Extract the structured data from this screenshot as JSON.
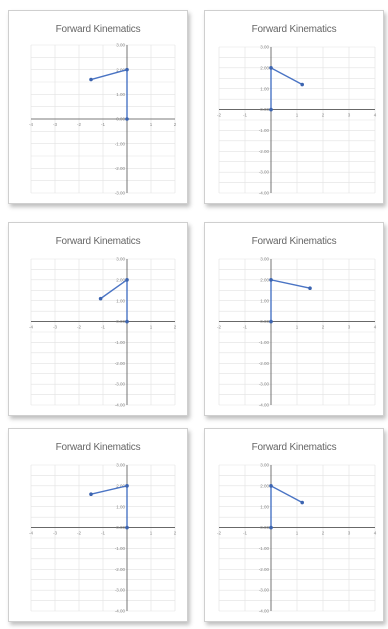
{
  "chart_data": [
    {
      "type": "line",
      "title": "Forward Kinematics",
      "xlim": [
        -4,
        2
      ],
      "ylim": [
        -3,
        3
      ],
      "yticks": [
        -3,
        -2,
        -1,
        0,
        1,
        2,
        3
      ],
      "ytick_labels": [
        "-3.00",
        "-2.00",
        "-1.00",
        "0.00",
        "1.00",
        "2.00",
        "3.00"
      ],
      "xticks": [
        -4,
        -3,
        -2,
        -1,
        1,
        2
      ],
      "xtick_labels": [
        "-4",
        "-3",
        "-2",
        "-1",
        "1",
        "2"
      ],
      "grid": true,
      "series": [
        {
          "x": [
            0,
            0,
            -1.5
          ],
          "y": [
            0,
            2,
            1.6
          ]
        }
      ]
    },
    {
      "type": "line",
      "title": "Forward Kinematics",
      "xlim": [
        -2,
        4
      ],
      "ylim": [
        -4,
        3
      ],
      "yticks": [
        -4,
        -3,
        -2,
        -1,
        0,
        1,
        2,
        3
      ],
      "ytick_labels": [
        "-4.00",
        "-3.00",
        "-2.00",
        "-1.00",
        "0.00",
        "1.00",
        "2.00",
        "3.00"
      ],
      "xticks": [
        -2,
        -1,
        1,
        2,
        3,
        4
      ],
      "xtick_labels": [
        "-2",
        "-1",
        "1",
        "2",
        "3",
        "4"
      ],
      "grid": true,
      "series": [
        {
          "x": [
            0,
            0,
            1.2
          ],
          "y": [
            0,
            2,
            1.2
          ]
        }
      ]
    },
    {
      "type": "line",
      "title": "Forward Kinematics",
      "xlim": [
        -4,
        2
      ],
      "ylim": [
        -4,
        3
      ],
      "yticks": [
        -4,
        -3,
        -2,
        -1,
        0,
        1,
        2,
        3
      ],
      "ytick_labels": [
        "-4.00",
        "-3.00",
        "-2.00",
        "-1.00",
        "0.00",
        "1.00",
        "2.00",
        "3.00"
      ],
      "xticks": [
        -4,
        -3,
        -2,
        -1,
        1,
        2
      ],
      "xtick_labels": [
        "-4",
        "-3",
        "-2",
        "-1",
        "1",
        "2"
      ],
      "grid": true,
      "series": [
        {
          "x": [
            0,
            0,
            -1.1
          ],
          "y": [
            0,
            2,
            1.1
          ]
        }
      ]
    },
    {
      "type": "line",
      "title": "Forward Kinematics",
      "xlim": [
        -2,
        4
      ],
      "ylim": [
        -4,
        3
      ],
      "yticks": [
        -4,
        -3,
        -2,
        -1,
        0,
        1,
        2,
        3
      ],
      "ytick_labels": [
        "-4.00",
        "-3.00",
        "-2.00",
        "-1.00",
        "0.00",
        "1.00",
        "2.00",
        "3.00"
      ],
      "xticks": [
        -2,
        -1,
        1,
        2,
        3,
        4
      ],
      "xtick_labels": [
        "-2",
        "-1",
        "1",
        "2",
        "3",
        "4"
      ],
      "grid": true,
      "series": [
        {
          "x": [
            0,
            0,
            1.5
          ],
          "y": [
            0,
            2,
            1.6
          ]
        }
      ]
    },
    {
      "type": "line",
      "title": "Forward Kinematics",
      "xlim": [
        -4,
        2
      ],
      "ylim": [
        -4,
        3
      ],
      "yticks": [
        -4,
        -3,
        -2,
        -1,
        0,
        1,
        2,
        3
      ],
      "ytick_labels": [
        "-4.00",
        "-3.00",
        "-2.00",
        "-1.00",
        "0.00",
        "1.00",
        "2.00",
        "3.00"
      ],
      "xticks": [
        -4,
        -3,
        -2,
        -1,
        1,
        2
      ],
      "xtick_labels": [
        "-4",
        "-3",
        "-2",
        "-1",
        "1",
        "2"
      ],
      "grid": true,
      "series": [
        {
          "x": [
            0,
            0,
            -1.5
          ],
          "y": [
            0,
            2,
            1.6
          ]
        }
      ]
    },
    {
      "type": "line",
      "title": "Forward Kinematics",
      "xlim": [
        -2,
        4
      ],
      "ylim": [
        -4,
        3
      ],
      "yticks": [
        -4,
        -3,
        -2,
        -1,
        0,
        1,
        2,
        3
      ],
      "ytick_labels": [
        "-4.00",
        "-3.00",
        "-2.00",
        "-1.00",
        "0.00",
        "1.00",
        "2.00",
        "3.00"
      ],
      "xticks": [
        -2,
        -1,
        1,
        2,
        3,
        4
      ],
      "xtick_labels": [
        "-2",
        "-1",
        "1",
        "2",
        "3",
        "4"
      ],
      "grid": true,
      "series": [
        {
          "x": [
            0,
            0,
            1.2
          ],
          "y": [
            0,
            2,
            1.2
          ]
        }
      ]
    }
  ],
  "colors": {
    "line": "#4a74c4",
    "marker": "#3c64b0",
    "grid": "#e2e2e2",
    "axis": "#555555"
  }
}
